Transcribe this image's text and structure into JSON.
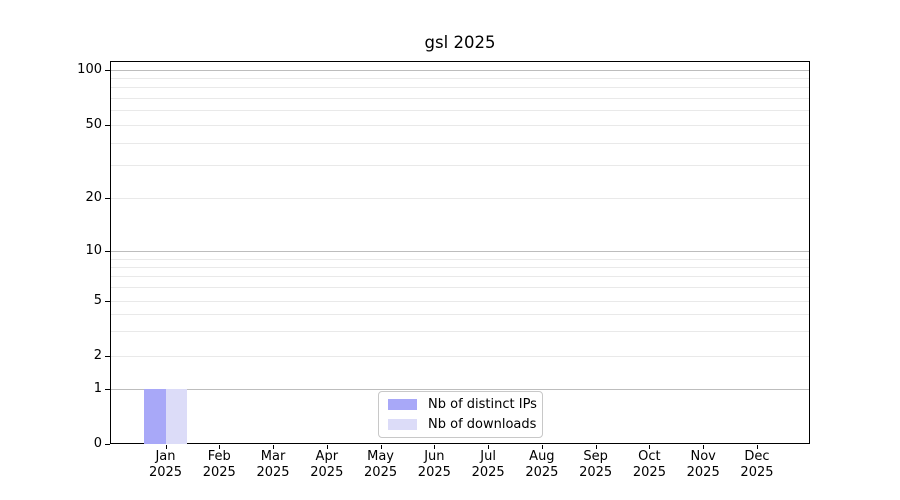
{
  "chart_data": {
    "type": "bar",
    "title": "gsl 2025",
    "categories": [
      "Jan",
      "Feb",
      "Mar",
      "Apr",
      "May",
      "Jun",
      "Jul",
      "Aug",
      "Sep",
      "Oct",
      "Nov",
      "Dec"
    ],
    "category_year": "2025",
    "series": [
      {
        "name": "Nb of distinct IPs",
        "color": "#a8a8f8",
        "values": [
          1,
          0,
          0,
          0,
          0,
          0,
          0,
          0,
          0,
          0,
          0,
          0
        ]
      },
      {
        "name": "Nb of downloads",
        "color": "#dcdcf8",
        "values": [
          1,
          0,
          0,
          0,
          0,
          0,
          0,
          0,
          0,
          0,
          0,
          0
        ]
      }
    ],
    "y_axis": {
      "scale": "log-like",
      "major_ticks": [
        0,
        1,
        2,
        5,
        10,
        20,
        50,
        100
      ],
      "minor_ticks": [
        3,
        4,
        6,
        7,
        8,
        9,
        30,
        40,
        60,
        70,
        80,
        90
      ],
      "ylim": [
        0,
        130
      ]
    },
    "grid": true,
    "legend_position": "lower center",
    "colors": {
      "major_gridline": "#bdbdbd",
      "minor_gridline": "#e9e9e9",
      "axis": "#000000",
      "legend_border": "#c8c8c8"
    }
  }
}
